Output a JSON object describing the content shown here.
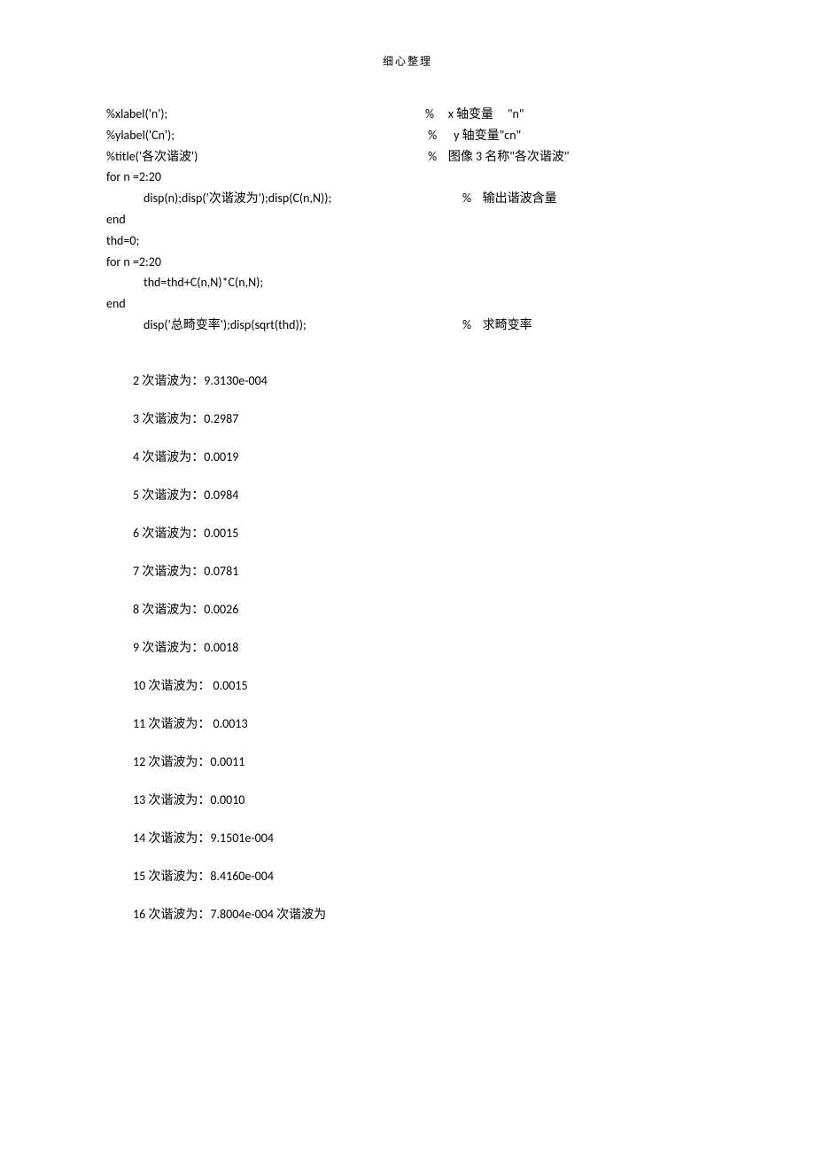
{
  "header": {
    "note": "细心整理"
  },
  "code": {
    "lines": [
      {
        "left": "%xlabel('n');",
        "right": "%     x 轴变量     \"n\""
      },
      {
        "left": "%ylabel('Cn');",
        "right": " %      y 轴变量\"cn\""
      },
      {
        "left": "%title('各次谐波')",
        "right": " %    图像 3 名称\"各次谐波\""
      },
      {
        "left": "",
        "right": ""
      },
      {
        "left": "for n =2:20",
        "right": ""
      },
      {
        "left_indent": "disp(n);disp('次谐波为');disp(C(n,N));",
        "right": "%    输出谐波含量",
        "indent": true
      },
      {
        "left": "end",
        "right": ""
      },
      {
        "left": "thd=0;",
        "right": ""
      },
      {
        "left": "for n =2:20",
        "right": ""
      },
      {
        "left_indent": "thd=thd+C(n,N)*C(n,N);",
        "right": "",
        "indent": true
      },
      {
        "left": "end",
        "right": ""
      },
      {
        "left_indent": "disp('总畸变率');disp(sqrt(thd));",
        "right": "%    求畸变率",
        "indent": true
      }
    ]
  },
  "results": {
    "items": [
      {
        "n": "2",
        "label": "次谐波为：",
        "value": "9.3130e-004"
      },
      {
        "n": "3",
        "label": "次谐波为：",
        "value": "0.2987"
      },
      {
        "n": "4",
        "label": "次谐波为：",
        "value": "0.0019"
      },
      {
        "n": "5",
        "label": "次谐波为：",
        "value": "0.0984"
      },
      {
        "n": "6",
        "label": "次谐波为：",
        "value": "0.0015"
      },
      {
        "n": "7",
        "label": "次谐波为：",
        "value": "0.0781"
      },
      {
        "n": "8",
        "label": "次谐波为：",
        "value": "0.0026"
      },
      {
        "n": "9",
        "label": "次谐波为：",
        "value": "0.0018"
      },
      {
        "n": "10",
        "label": "次谐波为：",
        "value": " 0.0015"
      },
      {
        "n": "11",
        "label": "次谐波为：",
        "value": " 0.0013"
      },
      {
        "n": "12",
        "label": "次谐波为：",
        "value": "0.0011"
      },
      {
        "n": "13",
        "label": "次谐波为：",
        "value": "0.0010"
      },
      {
        "n": "14",
        "label": "次谐波为：",
        "value": "9.1501e-004"
      },
      {
        "n": "15",
        "label": "次谐波为：",
        "value": "8.4160e-004"
      },
      {
        "n": "16",
        "label": "次谐波为：",
        "value": "7.8004e-004 次谐波为"
      }
    ]
  },
  "layout": {
    "code_col1_width": 360
  }
}
